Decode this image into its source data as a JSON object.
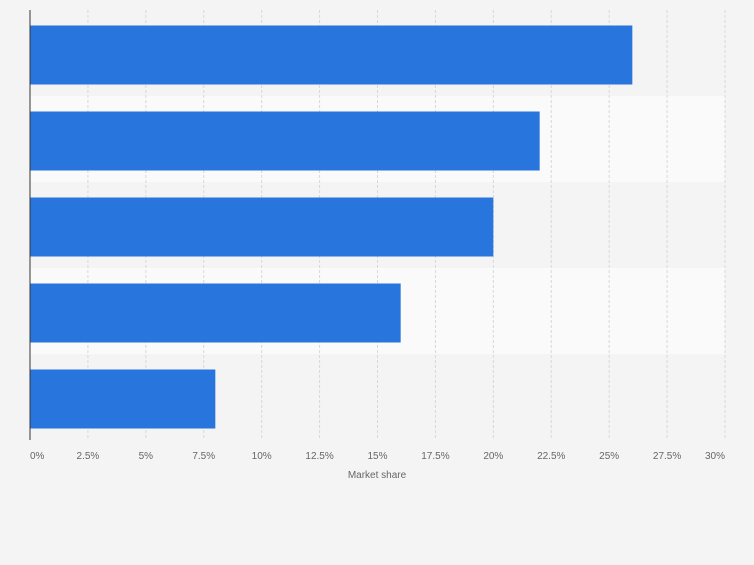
{
  "chart_data": {
    "type": "bar",
    "orientation": "horizontal",
    "categories": [
      "",
      "",
      "",
      "",
      ""
    ],
    "values": [
      26,
      22,
      20,
      16,
      8
    ],
    "title": "",
    "xlabel": "Market share",
    "ylabel": "",
    "xlim": [
      0,
      30
    ],
    "x_ticks": [
      "0%",
      "2.5%",
      "5%",
      "7.5%",
      "10%",
      "12.5%",
      "15%",
      "17.5%",
      "20%",
      "22.5%",
      "25%",
      "27.5%",
      "30%"
    ],
    "grid": true,
    "legend": "none",
    "colors": {
      "bar": "#2876dd",
      "band_a": "#f4f4f4",
      "band_b": "#fafafa",
      "grid": "#d8d8d8",
      "axis": "#333333",
      "tick_text": "#666666"
    }
  }
}
